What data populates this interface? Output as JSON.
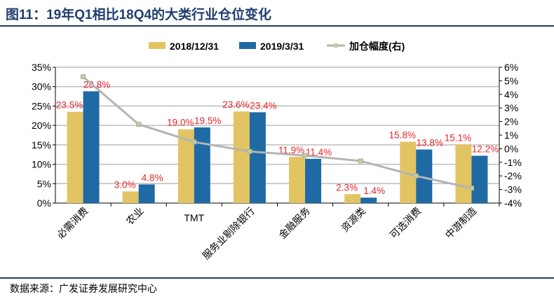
{
  "title": "图11：19年Q1相比18Q4的大类行业仓位变化",
  "source": "数据来源：广发证券发展研究中心",
  "chart_data": {
    "type": "bar",
    "categories": [
      "必需消费",
      "农业",
      "TMT",
      "服务业剔除银行",
      "金融服务",
      "资源类",
      "可选消费",
      "中游制造"
    ],
    "series": [
      {
        "name": "2018/12/31",
        "values": [
          23.5,
          3.0,
          19.0,
          23.6,
          11.9,
          2.3,
          15.8,
          15.1
        ],
        "color": "#e3c462",
        "axis": "left"
      },
      {
        "name": "2019/3/31",
        "values": [
          28.8,
          4.8,
          19.5,
          23.4,
          11.4,
          1.4,
          13.8,
          12.2
        ],
        "color": "#1f6aa5",
        "axis": "left"
      },
      {
        "name": "加仓幅度(右)",
        "type": "line",
        "values": [
          5.3,
          1.8,
          0.5,
          -0.2,
          -0.5,
          -0.9,
          -2.0,
          -2.9
        ],
        "color": "#b4b4b4",
        "axis": "right"
      }
    ],
    "left_axis": {
      "ylim": [
        0,
        35
      ],
      "ticks": [
        "0%",
        "5%",
        "10%",
        "15%",
        "20%",
        "25%",
        "30%",
        "35%"
      ]
    },
    "right_axis": {
      "ylim": [
        -4,
        6
      ],
      "ticks": [
        "-4%",
        "-3%",
        "-2%",
        "-1%",
        "0%",
        "1%",
        "2%",
        "3%",
        "4%",
        "5%",
        "6%"
      ]
    },
    "data_labels": [
      [
        "23.5%",
        "3.0%",
        "19.0%",
        "23.6%",
        "11.9%",
        "2.3%",
        "15.8%",
        "15.1%"
      ],
      [
        "28.8%",
        "4.8%",
        "19.5%",
        "23.4%",
        "11.4%",
        "1.4%",
        "13.8%",
        "12.2%"
      ]
    ],
    "label_color": "#e8252a",
    "grid": true,
    "legend_placement": "top"
  }
}
